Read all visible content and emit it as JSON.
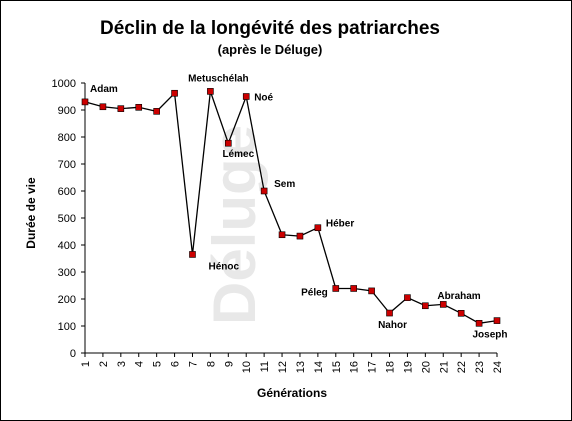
{
  "chart_data": {
    "type": "line",
    "title": "Déclin de la longévité des patriarches",
    "subtitle": "(après le Déluge)",
    "xlabel": "Générations",
    "ylabel": "Durée de vie",
    "watermark": "Déluge",
    "x": [
      1,
      2,
      3,
      4,
      5,
      6,
      7,
      8,
      9,
      10,
      11,
      12,
      13,
      14,
      15,
      16,
      17,
      18,
      19,
      20,
      21,
      22,
      23,
      24
    ],
    "x_ticks": [
      "1",
      "2",
      "3",
      "4",
      "5",
      "6",
      "7",
      "8",
      "9",
      "10",
      "11",
      "12",
      "13",
      "14",
      "15",
      "16",
      "17",
      "18",
      "19",
      "20",
      "21",
      "22",
      "23",
      "24"
    ],
    "values": [
      930,
      912,
      905,
      910,
      895,
      962,
      365,
      969,
      777,
      950,
      600,
      438,
      433,
      464,
      239,
      239,
      230,
      148,
      205,
      175,
      180,
      147,
      110,
      120
    ],
    "ylim": [
      0,
      1000
    ],
    "y_ticks": [
      0,
      100,
      200,
      300,
      400,
      500,
      600,
      700,
      800,
      900,
      1000
    ],
    "labels": [
      {
        "index": 0,
        "text": "Adam"
      },
      {
        "index": 6,
        "text": "Hénoc"
      },
      {
        "index": 7,
        "text": "Metuschélah"
      },
      {
        "index": 8,
        "text": "Lémec"
      },
      {
        "index": 9,
        "text": "Noé"
      },
      {
        "index": 10,
        "text": "Sem"
      },
      {
        "index": 13,
        "text": "Héber"
      },
      {
        "index": 14,
        "text": "Péleg"
      },
      {
        "index": 17,
        "text": "Nahor"
      },
      {
        "index": 19,
        "text": "Abraham"
      },
      {
        "index": 23,
        "text": "Joseph"
      }
    ],
    "marker_color": "#cc0000",
    "line_color": "#000000",
    "grid": false
  }
}
